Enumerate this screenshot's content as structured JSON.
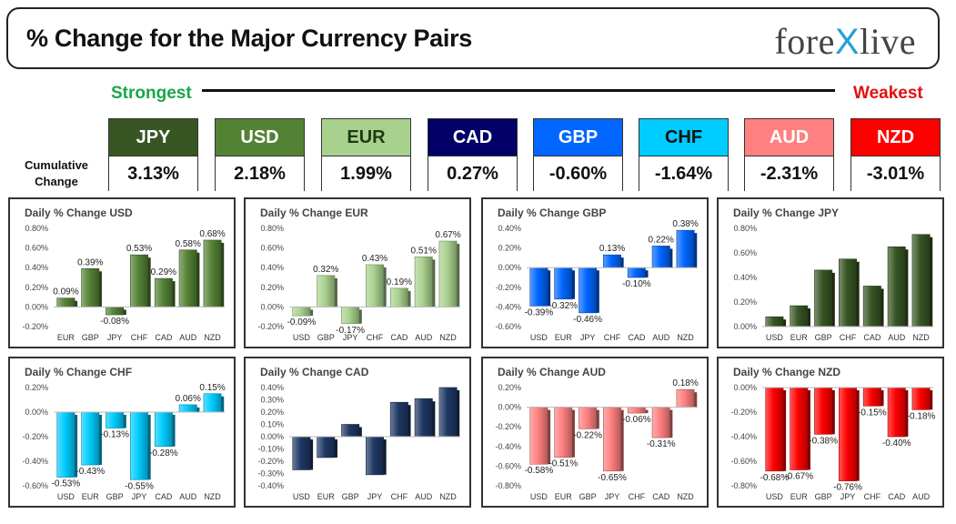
{
  "header": {
    "title": "% Change for the Major Currency Pairs",
    "logo_text_a": "fore",
    "logo_text_x": "X",
    "logo_text_b": "live"
  },
  "ranking": {
    "strongest_label": "Strongest",
    "weakest_label": "Weakest",
    "cumulative_label_line1": "Cumulative",
    "cumulative_label_line2": "Change",
    "cards": [
      {
        "currency": "JPY",
        "value": "3.13%",
        "bg": "#375623",
        "fg": "#ffffff"
      },
      {
        "currency": "USD",
        "value": "2.18%",
        "bg": "#548235",
        "fg": "#ffffff"
      },
      {
        "currency": "EUR",
        "value": "1.99%",
        "bg": "#a9d18e",
        "fg": "#1e3a12"
      },
      {
        "currency": "CAD",
        "value": "0.27%",
        "bg": "#000066",
        "fg": "#ffffff"
      },
      {
        "currency": "GBP",
        "value": "-0.60%",
        "bg": "#0066ff",
        "fg": "#ffffff"
      },
      {
        "currency": "CHF",
        "value": "-1.64%",
        "bg": "#00ccff",
        "fg": "#111111"
      },
      {
        "currency": "AUD",
        "value": "-2.31%",
        "bg": "#ff8080",
        "fg": "#ffffff"
      },
      {
        "currency": "NZD",
        "value": "-3.01%",
        "bg": "#ff0000",
        "fg": "#ffffff"
      }
    ]
  },
  "chart_data": [
    {
      "type": "bar",
      "title": "Daily % Change USD",
      "categories": [
        "EUR",
        "GBP",
        "JPY",
        "CHF",
        "CAD",
        "AUD",
        "NZD"
      ],
      "values": [
        0.09,
        0.39,
        -0.08,
        0.53,
        0.29,
        0.58,
        0.68
      ],
      "labels": [
        "0.09%",
        "0.39%",
        "-0.08%",
        "0.53%",
        "0.29%",
        "0.58%",
        "0.68%"
      ],
      "ylim": [
        -0.2,
        0.8
      ],
      "yticks": [
        -0.2,
        0,
        0.2,
        0.4,
        0.6,
        0.8
      ],
      "tick_labels": [
        "-0.20%",
        "0.00%",
        "0.20%",
        "0.40%",
        "0.60%",
        "0.80%"
      ],
      "color": "#548235",
      "show_labels": true
    },
    {
      "type": "bar",
      "title": "Daily % Change EUR",
      "categories": [
        "USD",
        "GBP",
        "JPY",
        "CHF",
        "CAD",
        "AUD",
        "NZD"
      ],
      "values": [
        -0.09,
        0.32,
        -0.17,
        0.43,
        0.19,
        0.51,
        0.67
      ],
      "labels": [
        "-0.09%",
        "0.32%",
        "-0.17%",
        "0.43%",
        "0.19%",
        "0.51%",
        "0.67%"
      ],
      "ylim": [
        -0.2,
        0.8
      ],
      "yticks": [
        -0.2,
        0,
        0.2,
        0.4,
        0.6,
        0.8
      ],
      "tick_labels": [
        "-0.20%",
        "0.00%",
        "0.20%",
        "0.40%",
        "0.60%",
        "0.80%"
      ],
      "color": "#a9d18e",
      "show_labels": true
    },
    {
      "type": "bar",
      "title": "Daily % Change GBP",
      "categories": [
        "USD",
        "EUR",
        "JPY",
        "CHF",
        "CAD",
        "AUD",
        "NZD"
      ],
      "values": [
        -0.39,
        -0.32,
        -0.46,
        0.13,
        -0.1,
        0.22,
        0.38
      ],
      "labels": [
        "-0.39%",
        "-0.32%",
        "-0.46%",
        "0.13%",
        "-0.10%",
        "0.22%",
        "0.38%"
      ],
      "ylim": [
        -0.6,
        0.4
      ],
      "yticks": [
        -0.6,
        -0.4,
        -0.2,
        0,
        0.2,
        0.4
      ],
      "tick_labels": [
        "-0.60%",
        "-0.40%",
        "-0.20%",
        "0.00%",
        "0.20%",
        "0.40%"
      ],
      "color": "#0066ff",
      "show_labels": true
    },
    {
      "type": "bar",
      "title": "Daily % Change JPY",
      "categories": [
        "USD",
        "EUR",
        "GBP",
        "CHF",
        "CAD",
        "AUD",
        "NZD"
      ],
      "values": [
        0.08,
        0.17,
        0.46,
        0.55,
        0.33,
        0.65,
        0.75
      ],
      "ylim": [
        0,
        0.8
      ],
      "yticks": [
        0,
        0.2,
        0.4,
        0.6,
        0.8
      ],
      "tick_labels": [
        "0.00%",
        "0.20%",
        "0.40%",
        "0.60%",
        "0.80%"
      ],
      "color": "#375623",
      "show_labels": false
    },
    {
      "type": "bar",
      "title": "Daily % Change CHF",
      "categories": [
        "USD",
        "EUR",
        "GBP",
        "JPY",
        "CAD",
        "AUD",
        "NZD"
      ],
      "values": [
        -0.53,
        -0.43,
        -0.13,
        -0.55,
        -0.28,
        0.06,
        0.15
      ],
      "labels": [
        "-0.53%",
        "-0.43%",
        "-0.13%",
        "-0.55%",
        "-0.28%",
        "0.06%",
        "0.15%"
      ],
      "ylim": [
        -0.6,
        0.2
      ],
      "yticks": [
        -0.6,
        -0.4,
        -0.2,
        0,
        0.2
      ],
      "tick_labels": [
        "-0.60%",
        "-0.40%",
        "-0.20%",
        "0.00%",
        "0.20%"
      ],
      "color": "#00ccff",
      "show_labels": true
    },
    {
      "type": "bar",
      "title": "Daily % Change CAD",
      "categories": [
        "USD",
        "EUR",
        "GBP",
        "JPY",
        "CHF",
        "AUD",
        "NZD"
      ],
      "values": [
        -0.27,
        -0.17,
        0.1,
        -0.31,
        0.28,
        0.31,
        0.4
      ],
      "ylim": [
        -0.4,
        0.4
      ],
      "yticks": [
        -0.4,
        -0.3,
        -0.2,
        -0.1,
        0,
        0.1,
        0.2,
        0.3,
        0.4
      ],
      "tick_labels": [
        "-0.40%",
        "-0.30%",
        "-0.20%",
        "-0.10%",
        "0.00%",
        "0.10%",
        "0.20%",
        "0.30%",
        "0.40%"
      ],
      "color": "#1f3864",
      "show_labels": false
    },
    {
      "type": "bar",
      "title": "Daily % Change AUD",
      "categories": [
        "USD",
        "EUR",
        "GBP",
        "JPY",
        "CHF",
        "CAD",
        "NZD"
      ],
      "values": [
        -0.58,
        -0.51,
        -0.22,
        -0.65,
        -0.06,
        -0.31,
        0.18
      ],
      "labels": [
        "-0.58%",
        "-0.51%",
        "-0.22%",
        "-0.65%",
        "-0.06%",
        "-0.31%",
        "0.18%"
      ],
      "ylim": [
        -0.8,
        0.2
      ],
      "yticks": [
        -0.8,
        -0.6,
        -0.4,
        -0.2,
        0,
        0.2
      ],
      "tick_labels": [
        "-0.80%",
        "-0.60%",
        "-0.40%",
        "-0.20%",
        "0.00%",
        "0.20%"
      ],
      "color": "#ff8080",
      "show_labels": true
    },
    {
      "type": "bar",
      "title": "Daily % Change NZD",
      "categories": [
        "USD",
        "EUR",
        "GBP",
        "JPY",
        "CHF",
        "CAD",
        "AUD"
      ],
      "values": [
        -0.68,
        -0.67,
        -0.38,
        -0.76,
        -0.15,
        -0.4,
        -0.18
      ],
      "labels": [
        "-0.68%",
        "-0.67%",
        "-0.38%",
        "-0.76%",
        "-0.15%",
        "-0.40%",
        "-0.18%"
      ],
      "ylim": [
        -0.8,
        0
      ],
      "yticks": [
        -0.8,
        -0.6,
        -0.4,
        -0.2,
        0
      ],
      "tick_labels": [
        "-0.80%",
        "-0.60%",
        "-0.40%",
        "-0.20%",
        "0.00%"
      ],
      "color": "#ff0000",
      "show_labels": true
    }
  ]
}
